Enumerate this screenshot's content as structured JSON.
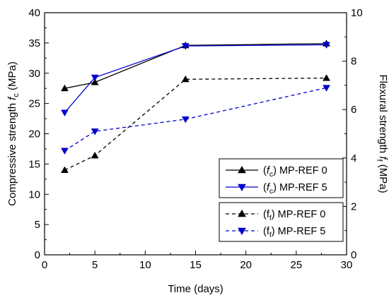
{
  "chart_data": {
    "type": "line",
    "xlabel": "Time (days)",
    "ylabel_left": {
      "prefix": "Compressive strength ",
      "var": "f",
      "sub": "c",
      "suffix": " (MPa)"
    },
    "ylabel_right": {
      "prefix": "Flexural strength ",
      "var": "f",
      "sub": "f",
      "suffix": " (MPa)"
    },
    "xlim": [
      0,
      30
    ],
    "ylim_left": [
      0,
      40
    ],
    "ylim_right": [
      0,
      10
    ],
    "x_ticks": [
      "0",
      "5",
      "10",
      "15",
      "20",
      "25",
      "30"
    ],
    "y_left_ticks": [
      "0",
      "5",
      "10",
      "15",
      "20",
      "25",
      "30",
      "35",
      "40"
    ],
    "y_right_ticks": [
      "0",
      "2",
      "4",
      "6",
      "8",
      "10"
    ],
    "grid": false,
    "legend_placement": "lower-right",
    "series": [
      {
        "name": "MP-REF 0",
        "legend": {
          "open": "(",
          "var": "f",
          "sub": "c",
          "close": ") MP-REF 0"
        },
        "axis": "left",
        "x": [
          2,
          5,
          14,
          28
        ],
        "y": [
          27.5,
          28.5,
          34.6,
          34.9
        ],
        "color": "#000000",
        "dash": "solid",
        "marker": "triangle-up"
      },
      {
        "name": "MP-REF 5",
        "legend": {
          "open": "(",
          "var": "f",
          "sub": "c",
          "close": ") MP-REF 5"
        },
        "axis": "left",
        "x": [
          2,
          5,
          14,
          28
        ],
        "y": [
          23.5,
          29.3,
          34.5,
          34.7
        ],
        "color": "#0000cc",
        "dash": "solid",
        "marker": "triangle-down"
      },
      {
        "name": "MP-REF 0",
        "legend": {
          "open": "(",
          "var": "f",
          "sub": "f",
          "close": ") MP-REF 0"
        },
        "axis": "right",
        "x": [
          2,
          5,
          14,
          28
        ],
        "y": [
          3.5,
          4.1,
          7.25,
          7.3
        ],
        "color": "#000000",
        "dash": "dashed",
        "marker": "triangle-up"
      },
      {
        "name": "MP-REF 5",
        "legend": {
          "open": "(",
          "var": "f",
          "sub": "f",
          "close": ") MP-REF 5"
        },
        "axis": "right",
        "x": [
          2,
          5,
          14,
          28
        ],
        "y": [
          4.3,
          5.1,
          5.6,
          6.9
        ],
        "color": "#0000cc",
        "dash": "dashed",
        "marker": "triangle-down"
      }
    ]
  }
}
